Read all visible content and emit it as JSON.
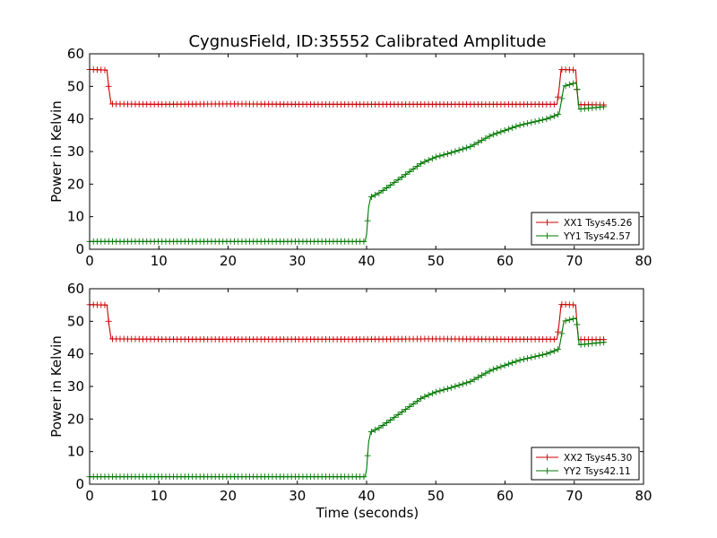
{
  "figure": {
    "title": "CygnusField, ID:35552 Calibrated Amplitude",
    "xlabel": "Time (seconds)"
  },
  "chart_data": [
    {
      "type": "line",
      "title": "CygnusField, ID:35552 Calibrated Amplitude",
      "xlabel": "",
      "ylabel": "Power in Kelvin",
      "xlim": [
        0,
        80
      ],
      "ylim": [
        0,
        60
      ],
      "xticks": [
        0,
        10,
        20,
        30,
        40,
        50,
        60,
        70,
        80
      ],
      "yticks": [
        0,
        10,
        20,
        30,
        40,
        50,
        60
      ],
      "grid": false,
      "legend_position": "lower-right",
      "series": [
        {
          "name": "XX1 Tsys45.26",
          "color": "#cc0000",
          "marker": "+",
          "points": [
            [
              0,
              55.2
            ],
            [
              2.5,
              55.0
            ],
            [
              2.8,
              49
            ],
            [
              3.1,
              44.6
            ],
            [
              10,
              44.5
            ],
            [
              20,
              44.6
            ],
            [
              30,
              44.5
            ],
            [
              40,
              44.5
            ],
            [
              50,
              44.5
            ],
            [
              60,
              44.5
            ],
            [
              67.5,
              44.5
            ],
            [
              67.8,
              49
            ],
            [
              68.1,
              55.2
            ],
            [
              70.2,
              55.0
            ],
            [
              70.4,
              49
            ],
            [
              70.6,
              44.4
            ],
            [
              74.5,
              44.3
            ]
          ]
        },
        {
          "name": "YY1 Tsys42.57",
          "color": "#007700",
          "marker": "+",
          "points": [
            [
              0,
              2.4
            ],
            [
              10,
              2.4
            ],
            [
              20,
              2.4
            ],
            [
              30,
              2.4
            ],
            [
              39.8,
              2.4
            ],
            [
              40.0,
              4.5
            ],
            [
              40.3,
              13
            ],
            [
              40.6,
              16
            ],
            [
              42,
              17.5
            ],
            [
              45,
              22
            ],
            [
              48,
              26.5
            ],
            [
              50,
              28.3
            ],
            [
              52,
              29.5
            ],
            [
              55,
              31.5
            ],
            [
              58,
              35
            ],
            [
              62,
              38
            ],
            [
              66,
              40
            ],
            [
              67.8,
              41.5
            ],
            [
              68.1,
              45
            ],
            [
              68.5,
              50
            ],
            [
              70.3,
              51.2
            ],
            [
              70.5,
              47
            ],
            [
              70.7,
              43
            ],
            [
              74.5,
              43.8
            ]
          ]
        }
      ]
    },
    {
      "type": "line",
      "title": "",
      "xlabel": "Time (seconds)",
      "ylabel": "Power in Kelvin",
      "xlim": [
        0,
        80
      ],
      "ylim": [
        0,
        60
      ],
      "xticks": [
        0,
        10,
        20,
        30,
        40,
        50,
        60,
        70,
        80
      ],
      "yticks": [
        0,
        10,
        20,
        30,
        40,
        50,
        60
      ],
      "grid": false,
      "legend_position": "lower-right",
      "series": [
        {
          "name": "XX2 Tsys45.30",
          "color": "#cc0000",
          "marker": "+",
          "points": [
            [
              0,
              55.1
            ],
            [
              2.5,
              55.0
            ],
            [
              2.8,
              49
            ],
            [
              3.1,
              44.6
            ],
            [
              10,
              44.5
            ],
            [
              20,
              44.5
            ],
            [
              30,
              44.5
            ],
            [
              40,
              44.5
            ],
            [
              50,
              44.6
            ],
            [
              60,
              44.5
            ],
            [
              67.5,
              44.5
            ],
            [
              67.8,
              49
            ],
            [
              68.1,
              55.2
            ],
            [
              70.2,
              55.0
            ],
            [
              70.4,
              49
            ],
            [
              70.6,
              44.4
            ],
            [
              74.5,
              44.4
            ]
          ]
        },
        {
          "name": "YY2 Tsys42.11",
          "color": "#007700",
          "marker": "+",
          "points": [
            [
              0,
              2.3
            ],
            [
              10,
              2.3
            ],
            [
              20,
              2.3
            ],
            [
              30,
              2.3
            ],
            [
              39.8,
              2.3
            ],
            [
              40.0,
              4.5
            ],
            [
              40.3,
              13
            ],
            [
              40.6,
              16
            ],
            [
              42,
              17.5
            ],
            [
              45,
              22
            ],
            [
              48,
              26.5
            ],
            [
              50,
              28.3
            ],
            [
              52,
              29.5
            ],
            [
              55,
              31.5
            ],
            [
              58,
              35
            ],
            [
              62,
              38
            ],
            [
              66,
              40
            ],
            [
              67.8,
              41.5
            ],
            [
              68.1,
              45
            ],
            [
              68.5,
              50
            ],
            [
              70.3,
              51
            ],
            [
              70.5,
              47
            ],
            [
              70.7,
              42.8
            ],
            [
              74.5,
              43.6
            ]
          ]
        }
      ]
    }
  ]
}
